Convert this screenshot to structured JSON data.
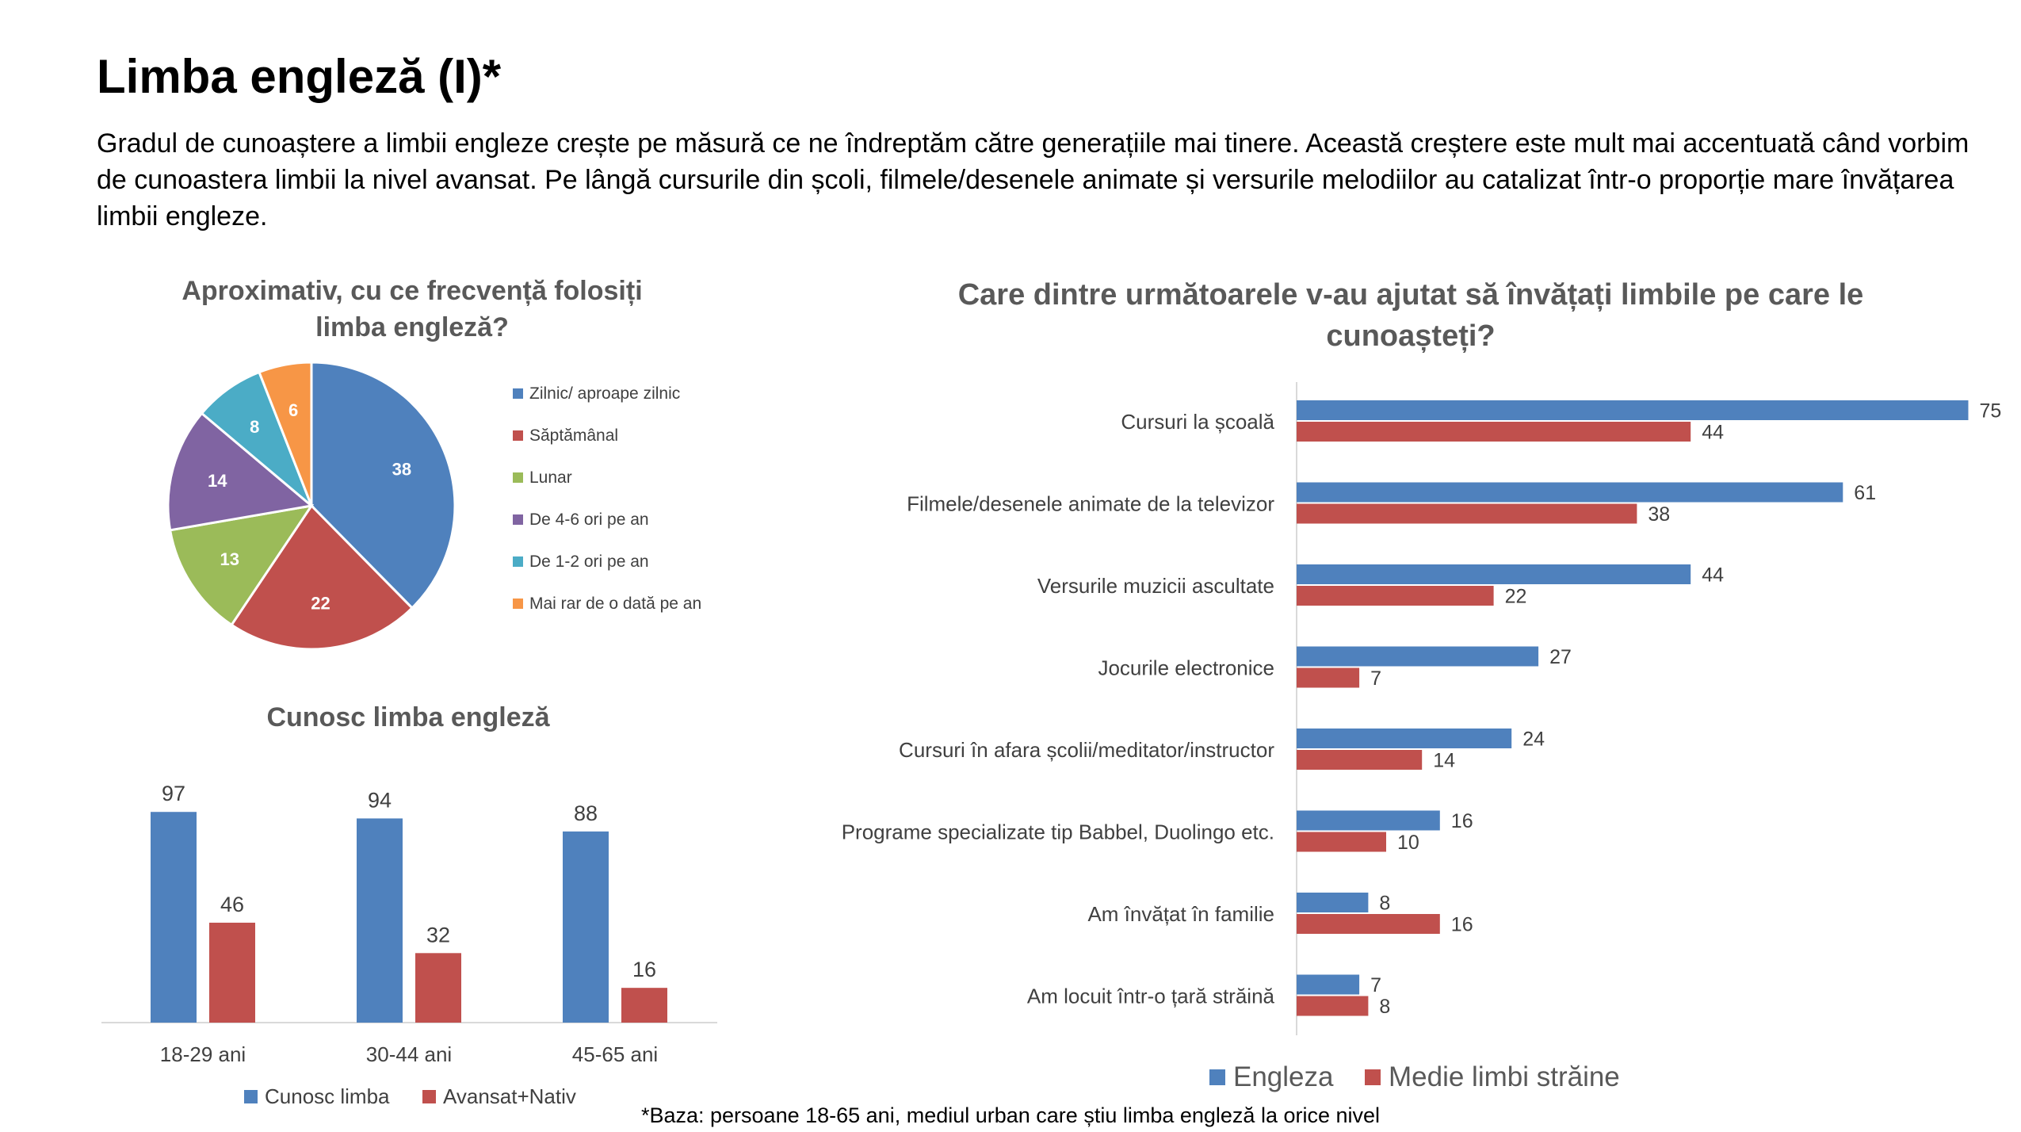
{
  "page": {
    "title": "Limba engleză (I)*",
    "intro": "Gradul de cunoaștere a limbii engleze crește pe măsură ce ne îndreptăm către generațiile mai tinere. Această creștere este mult mai accentuată când vorbim de cunoastera limbii la nivel avansat.  Pe lângă cursurile din școli, filmele/desenele animate și versurile melodiilor au catalizat într-o proporție mare învățarea limbii engleze.",
    "footnote": "*Baza: persoane 18-65 ani, mediul urban care știu limba engleză la orice nivel"
  },
  "colors": {
    "blue": "#4F81BD",
    "red": "#C0504D",
    "green": "#9BBB59",
    "purple": "#8064A2",
    "teal": "#4BACC6",
    "orange": "#F79646"
  },
  "chart_data": [
    {
      "type": "pie",
      "title": "Aproximativ, cu ce frecvență folosiți limba engleză?",
      "categories": [
        "Zilnic/ aproape zilnic",
        "Săptămânal",
        "Lunar",
        "De 4-6 ori pe an",
        "De 1-2 ori pe an",
        "Mai rar de o dată pe an"
      ],
      "values": [
        38,
        22,
        13,
        14,
        8,
        6
      ],
      "colors": [
        "#4F81BD",
        "#C0504D",
        "#9BBB59",
        "#8064A2",
        "#4BACC6",
        "#F79646"
      ],
      "legend": "right"
    },
    {
      "type": "bar",
      "title": "Cunosc limba engleză",
      "categories": [
        "18-29 ani",
        "30-44 ani",
        "45-65 ani"
      ],
      "series": [
        {
          "name": "Cunosc limba",
          "values": [
            97,
            94,
            88
          ],
          "color": "#4F81BD"
        },
        {
          "name": "Avansat+Nativ",
          "values": [
            46,
            32,
            16
          ],
          "color": "#C0504D"
        }
      ],
      "legend": "bottom",
      "grid": false
    },
    {
      "type": "bar",
      "orientation": "horizontal",
      "title": "Care dintre următoarele v-au ajutat să învățați limbile pe care le cunoașteți?",
      "categories": [
        "Cursuri la școală",
        "Filmele/desenele animate de la televizor",
        "Versurile muzicii ascultate",
        "Jocurile electronice",
        "Cursuri în afara școlii/meditator/instructor",
        "Programe specializate tip Babbel, Duolingo etc.",
        "Am învățat în familie",
        "Am locuit într-o țară străină"
      ],
      "series": [
        {
          "name": "Engleza",
          "values": [
            75,
            61,
            44,
            27,
            24,
            16,
            8,
            7
          ],
          "color": "#4F81BD"
        },
        {
          "name": "Medie limbi străine",
          "values": [
            44,
            38,
            22,
            7,
            14,
            10,
            16,
            8
          ],
          "color": "#C0504D"
        }
      ],
      "legend": "bottom",
      "grid": false
    }
  ]
}
